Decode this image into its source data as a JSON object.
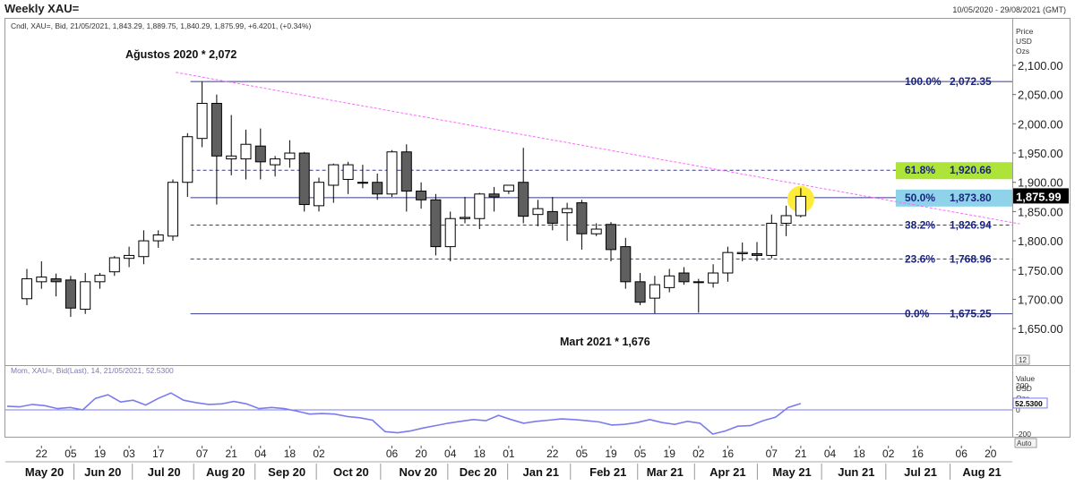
{
  "window": {
    "title": "Weekly XAU=",
    "date_range": "10/05/2020 - 29/08/2021 (GMT)"
  },
  "main_panel": {
    "info_line": "Cndl, XAU=, Bid, 21/05/2021, 1,843.29, 1,889.75, 1,840.29, 1,875.99, +6.4201, (+0.34%)",
    "axis_title": [
      "Price",
      "USD",
      "Ozs"
    ],
    "last_price_label": "1,875.99",
    "annotation_high": "Ağustos 2020 * 2,072",
    "annotation_low": "Mart 2021 * 1,676",
    "scale_button": "12"
  },
  "indicator_panel": {
    "info_line": "Mom, XAU=, Bid(Last), 14, 21/05/2021, 52.5300",
    "axis_title": [
      "Value",
      "USD",
      "Ozs"
    ],
    "last_value_label": "52.5300",
    "auto_button": "Auto"
  },
  "colors": {
    "bull_fill": "#ffffff",
    "bear_fill": "#5f5f5f",
    "candle_outline": "#000000",
    "fib_line": "#3a3a8c",
    "fib_label": "#1a237e",
    "trendline": "#ff66ff",
    "momentum_line": "#7b7bef",
    "highlight_green": "#aee33a",
    "highlight_blue": "#8fd3ea",
    "highlight_circle": "#ffeb3b",
    "last_price_bg": "#000000"
  },
  "chart_data": {
    "type": "candlestick",
    "interval": "weekly",
    "y_axis": {
      "min": 1625,
      "max": 2125,
      "ticks": [
        1650,
        1700,
        1750,
        1800,
        1850,
        1900,
        1950,
        2000,
        2050,
        2100
      ],
      "tick_labels": [
        "1,650.00",
        "1,700.00",
        "1,750.00",
        "1,800.00",
        "1,850.00",
        "1,900.00",
        "1,950.00",
        "2,000.00",
        "2,050.00",
        "2,100.00"
      ]
    },
    "x_axis": {
      "week_ticks": [
        {
          "label": "22",
          "index": 1
        },
        {
          "label": "05",
          "index": 3
        },
        {
          "label": "19",
          "index": 5
        },
        {
          "label": "03",
          "index": 7
        },
        {
          "label": "17",
          "index": 9
        },
        {
          "label": "07",
          "index": 12
        },
        {
          "label": "21",
          "index": 14
        },
        {
          "label": "04",
          "index": 16
        },
        {
          "label": "18",
          "index": 18
        },
        {
          "label": "02",
          "index": 20
        },
        {
          "label": "06",
          "index": 25
        },
        {
          "label": "20",
          "index": 27
        },
        {
          "label": "04",
          "index": 29
        },
        {
          "label": "18",
          "index": 31
        },
        {
          "label": "01",
          "index": 33
        },
        {
          "label": "22",
          "index": 36
        },
        {
          "label": "05",
          "index": 38
        },
        {
          "label": "19",
          "index": 40
        },
        {
          "label": "05",
          "index": 42
        },
        {
          "label": "19",
          "index": 44
        },
        {
          "label": "02",
          "index": 46
        },
        {
          "label": "16",
          "index": 48
        },
        {
          "label": "07",
          "index": 51
        },
        {
          "label": "21",
          "index": 53
        },
        {
          "label": "04",
          "index": 55
        },
        {
          "label": "18",
          "index": 57
        },
        {
          "label": "02",
          "index": 59
        },
        {
          "label": "16",
          "index": 61
        },
        {
          "label": "06",
          "index": 64
        },
        {
          "label": "20",
          "index": 66
        }
      ],
      "month_labels": [
        {
          "label": "May 20",
          "index": 1.2
        },
        {
          "label": "Jun 20",
          "index": 5.2
        },
        {
          "label": "Jul 20",
          "index": 9.4
        },
        {
          "label": "Aug 20",
          "index": 13.6
        },
        {
          "label": "Sep 20",
          "index": 17.8
        },
        {
          "label": "Oct 20",
          "index": 22.2
        },
        {
          "label": "Nov 20",
          "index": 26.8
        },
        {
          "label": "Dec 20",
          "index": 30.9
        },
        {
          "label": "Jan 21",
          "index": 35.2
        },
        {
          "label": "Feb 21",
          "index": 39.8
        },
        {
          "label": "Mar 21",
          "index": 43.7
        },
        {
          "label": "Apr 21",
          "index": 48.0
        },
        {
          "label": "May 21",
          "index": 52.4
        },
        {
          "label": "Jun 21",
          "index": 56.8
        },
        {
          "label": "Jul 21",
          "index": 61.2
        },
        {
          "label": "Aug 21",
          "index": 65.4
        }
      ]
    },
    "candles": [
      {
        "o": 1701,
        "h": 1752,
        "l": 1690,
        "c": 1735
      },
      {
        "o": 1730,
        "h": 1765,
        "l": 1718,
        "c": 1738
      },
      {
        "o": 1735,
        "h": 1744,
        "l": 1705,
        "c": 1730
      },
      {
        "o": 1733,
        "h": 1740,
        "l": 1670,
        "c": 1685
      },
      {
        "o": 1683,
        "h": 1745,
        "l": 1675,
        "c": 1730
      },
      {
        "o": 1730,
        "h": 1745,
        "l": 1718,
        "c": 1741
      },
      {
        "o": 1747,
        "h": 1774,
        "l": 1740,
        "c": 1771
      },
      {
        "o": 1770,
        "h": 1790,
        "l": 1755,
        "c": 1775
      },
      {
        "o": 1773,
        "h": 1818,
        "l": 1760,
        "c": 1800
      },
      {
        "o": 1800,
        "h": 1818,
        "l": 1788,
        "c": 1810
      },
      {
        "o": 1808,
        "h": 1905,
        "l": 1800,
        "c": 1900
      },
      {
        "o": 1900,
        "h": 1984,
        "l": 1875,
        "c": 1978
      },
      {
        "o": 1975,
        "h": 2072,
        "l": 1960,
        "c": 2035
      },
      {
        "o": 2035,
        "h": 2050,
        "l": 1862,
        "c": 1945
      },
      {
        "o": 1940,
        "h": 2015,
        "l": 1912,
        "c": 1945
      },
      {
        "o": 1940,
        "h": 1990,
        "l": 1905,
        "c": 1965
      },
      {
        "o": 1962,
        "h": 1992,
        "l": 1905,
        "c": 1935
      },
      {
        "o": 1930,
        "h": 1945,
        "l": 1910,
        "c": 1940
      },
      {
        "o": 1940,
        "h": 1972,
        "l": 1925,
        "c": 1950
      },
      {
        "o": 1950,
        "h": 1952,
        "l": 1850,
        "c": 1862
      },
      {
        "o": 1860,
        "h": 1908,
        "l": 1850,
        "c": 1900
      },
      {
        "o": 1895,
        "h": 1932,
        "l": 1865,
        "c": 1930
      },
      {
        "o": 1905,
        "h": 1935,
        "l": 1880,
        "c": 1930
      },
      {
        "o": 1900,
        "h": 1930,
        "l": 1890,
        "c": 1900
      },
      {
        "o": 1900,
        "h": 1915,
        "l": 1870,
        "c": 1880
      },
      {
        "o": 1880,
        "h": 1955,
        "l": 1875,
        "c": 1952
      },
      {
        "o": 1952,
        "h": 1965,
        "l": 1850,
        "c": 1885
      },
      {
        "o": 1885,
        "h": 1900,
        "l": 1855,
        "c": 1870
      },
      {
        "o": 1870,
        "h": 1880,
        "l": 1775,
        "c": 1790
      },
      {
        "o": 1790,
        "h": 1850,
        "l": 1765,
        "c": 1838
      },
      {
        "o": 1838,
        "h": 1875,
        "l": 1830,
        "c": 1840
      },
      {
        "o": 1838,
        "h": 1882,
        "l": 1820,
        "c": 1880
      },
      {
        "o": 1880,
        "h": 1892,
        "l": 1850,
        "c": 1875
      },
      {
        "o": 1885,
        "h": 1895,
        "l": 1880,
        "c": 1895
      },
      {
        "o": 1900,
        "h": 1959,
        "l": 1830,
        "c": 1842
      },
      {
        "o": 1845,
        "h": 1870,
        "l": 1825,
        "c": 1855
      },
      {
        "o": 1850,
        "h": 1875,
        "l": 1818,
        "c": 1830
      },
      {
        "o": 1848,
        "h": 1865,
        "l": 1800,
        "c": 1855
      },
      {
        "o": 1865,
        "h": 1870,
        "l": 1785,
        "c": 1812
      },
      {
        "o": 1812,
        "h": 1830,
        "l": 1808,
        "c": 1820
      },
      {
        "o": 1828,
        "h": 1832,
        "l": 1765,
        "c": 1785
      },
      {
        "o": 1790,
        "h": 1805,
        "l": 1718,
        "c": 1730
      },
      {
        "o": 1730,
        "h": 1745,
        "l": 1690,
        "c": 1695
      },
      {
        "o": 1702,
        "h": 1740,
        "l": 1676,
        "c": 1725
      },
      {
        "o": 1720,
        "h": 1752,
        "l": 1712,
        "c": 1740
      },
      {
        "o": 1745,
        "h": 1755,
        "l": 1725,
        "c": 1730
      },
      {
        "o": 1730,
        "h": 1735,
        "l": 1677,
        "c": 1730
      },
      {
        "o": 1728,
        "h": 1760,
        "l": 1720,
        "c": 1745
      },
      {
        "o": 1745,
        "h": 1790,
        "l": 1730,
        "c": 1780
      },
      {
        "o": 1778,
        "h": 1797,
        "l": 1765,
        "c": 1780
      },
      {
        "o": 1778,
        "h": 1798,
        "l": 1765,
        "c": 1775
      },
      {
        "o": 1775,
        "h": 1845,
        "l": 1770,
        "c": 1830
      },
      {
        "o": 1830,
        "h": 1860,
        "l": 1808,
        "c": 1843
      },
      {
        "o": 1843,
        "h": 1890,
        "l": 1840,
        "c": 1876
      }
    ],
    "fibonacci": [
      {
        "level": "100.0%",
        "value": 2072.35,
        "label": "2,072.35",
        "highlight": null
      },
      {
        "level": "61.8%",
        "value": 1920.66,
        "label": "1,920.66",
        "highlight": "green"
      },
      {
        "level": "50.0%",
        "value": 1873.8,
        "label": "1,873.80",
        "highlight": "blue"
      },
      {
        "level": "38.2%",
        "value": 1826.94,
        "label": "1,826.94",
        "highlight": null
      },
      {
        "level": "23.6%",
        "value": 1768.96,
        "label": "1,768.96",
        "highlight": null
      },
      {
        "level": "0.0%",
        "value": 1675.25,
        "label": "1,675.25",
        "highlight": null
      }
    ],
    "fib_start_index": 12,
    "trendline": {
      "start": {
        "index": 10.2,
        "value": 2088
      },
      "end": {
        "index": 68,
        "value": 1829
      }
    },
    "highlight_index": 53,
    "momentum": {
      "y_axis": {
        "min": -260,
        "max": 220,
        "ticks": [
          200,
          0,
          -200
        ],
        "tick_labels": [
          "200",
          "0",
          "-200"
        ]
      },
      "values": [
        30,
        25,
        45,
        35,
        10,
        20,
        0,
        95,
        125,
        65,
        80,
        40,
        95,
        140,
        80,
        60,
        45,
        50,
        70,
        50,
        10,
        20,
        10,
        -10,
        -35,
        -30,
        -35,
        -55,
        -65,
        -85,
        -180,
        -190,
        -175,
        -150,
        -130,
        -110,
        -95,
        -80,
        -90,
        -45,
        -80,
        -110,
        -95,
        -85,
        -75,
        -80,
        -90,
        -100,
        -125,
        -120,
        -105,
        -80,
        -105,
        -120,
        -95,
        -110,
        -200,
        -175,
        -135,
        -130,
        -90,
        -60,
        20,
        52.53
      ]
    }
  }
}
